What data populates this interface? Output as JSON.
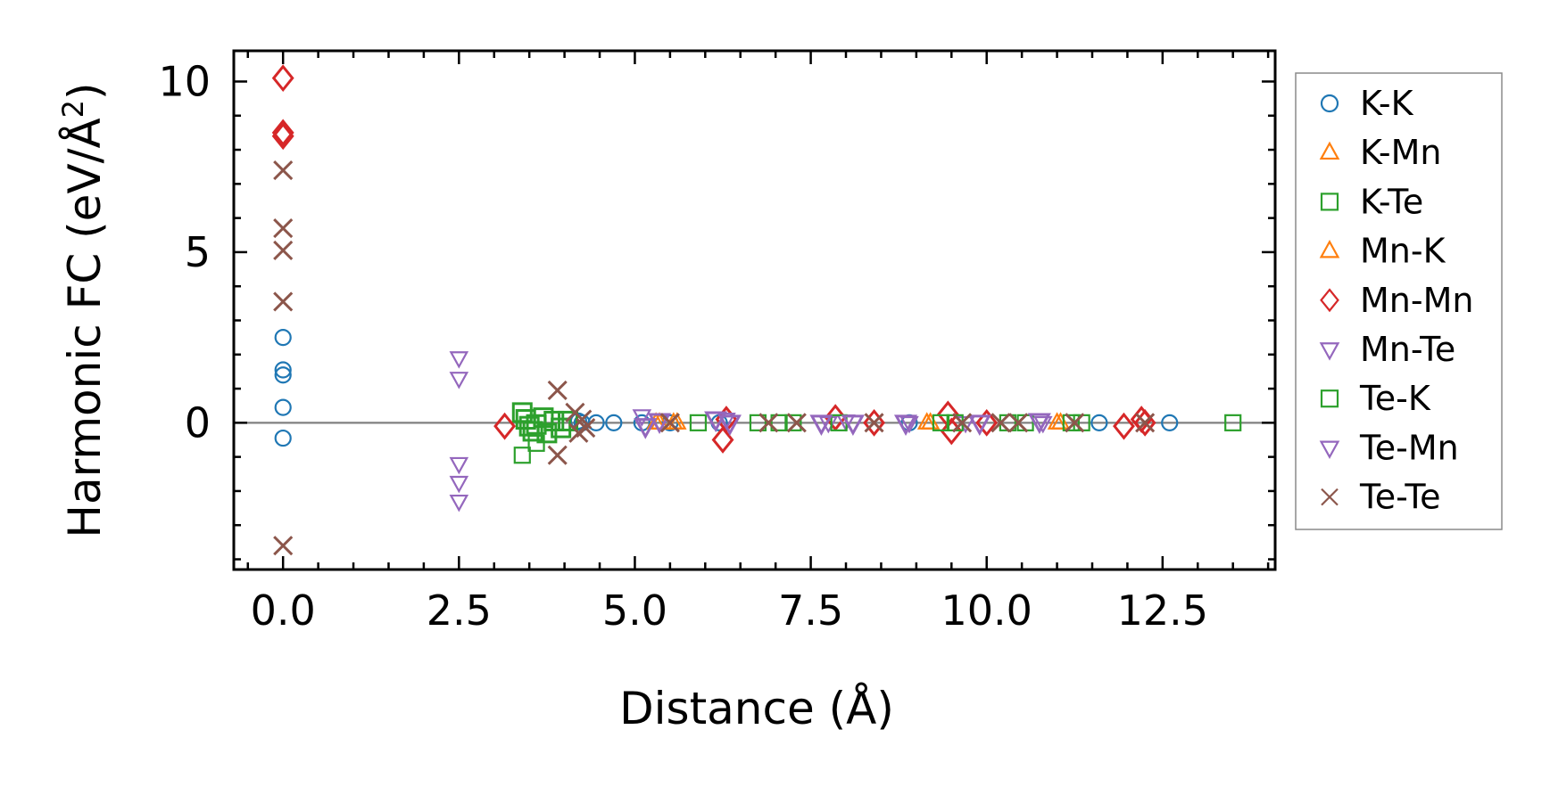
{
  "chart_data": {
    "type": "scatter",
    "xlabel": "Distance (Å)",
    "ylabel_main": "Harmonic FC (eV/Å",
    "ylabel_sup": "2",
    "ylabel_close": ")",
    "xlim": [
      -0.7,
      14.1
    ],
    "ylim": [
      -4.3,
      10.9
    ],
    "xticks": [
      0.0,
      2.5,
      5.0,
      7.5,
      10.0,
      12.5
    ],
    "xtick_labels": [
      "0.0",
      "2.5",
      "5.0",
      "7.5",
      "10.0",
      "12.5"
    ],
    "yticks": [
      0,
      5,
      10
    ],
    "ytick_labels": [
      "0",
      "5",
      "10"
    ],
    "grid": false,
    "zero_line": true,
    "legend_placement": "outside-right",
    "series": [
      {
        "name": "K-K",
        "color": "#1f77b4",
        "marker": "circle",
        "big": false,
        "points": [
          [
            0,
            2.5
          ],
          [
            0,
            1.55
          ],
          [
            0,
            1.4
          ],
          [
            0,
            0.45
          ],
          [
            0,
            -0.45
          ],
          [
            4.2,
            0.05
          ],
          [
            4.25,
            0
          ],
          [
            4.45,
            0
          ],
          [
            4.7,
            0
          ],
          [
            5.1,
            0
          ],
          [
            5.5,
            0
          ],
          [
            6.2,
            0
          ],
          [
            8.9,
            0
          ],
          [
            11.6,
            0
          ],
          [
            12.6,
            0
          ]
        ]
      },
      {
        "name": "K-Mn",
        "color": "#ff7f0e",
        "marker": "triangle-up",
        "big": false,
        "points": [
          [
            5.35,
            0
          ],
          [
            5.6,
            0
          ],
          [
            9.2,
            0
          ],
          [
            11.05,
            0
          ]
        ]
      },
      {
        "name": "K-Te",
        "color": "#2ca02c",
        "marker": "square",
        "big": true,
        "points": [
          [
            3.4,
            0.3
          ],
          [
            3.45,
            0.1
          ],
          [
            3.5,
            -0.1
          ],
          [
            3.55,
            -0.25
          ],
          [
            3.6,
            -0.05
          ],
          [
            3.7,
            0.15
          ],
          [
            3.75,
            -0.3
          ],
          [
            3.85,
            0.05
          ],
          [
            3.95,
            -0.15
          ],
          [
            4.05,
            0.05
          ]
        ]
      },
      {
        "name": "Mn-K",
        "color": "#ff7f0e",
        "marker": "triangle-up",
        "big": false,
        "points": [
          [
            5.3,
            0
          ],
          [
            5.55,
            0
          ],
          [
            9.15,
            0
          ],
          [
            11.0,
            0
          ]
        ]
      },
      {
        "name": "Mn-Mn",
        "color": "#d62728",
        "marker": "diamond",
        "big": true,
        "points": [
          [
            0,
            10.1
          ],
          [
            0,
            8.5
          ],
          [
            0,
            8.4
          ],
          [
            3.15,
            -0.1
          ],
          [
            6.25,
            -0.5
          ],
          [
            6.3,
            0.1
          ],
          [
            7.85,
            0.15
          ],
          [
            8.4,
            0
          ],
          [
            9.45,
            0.25
          ],
          [
            9.5,
            -0.25
          ],
          [
            10.0,
            0
          ],
          [
            11.95,
            -0.1
          ],
          [
            12.2,
            0.1
          ],
          [
            12.25,
            0
          ]
        ]
      },
      {
        "name": "Mn-Te",
        "color": "#9467bd",
        "marker": "triangle-down",
        "big": false,
        "points": [
          [
            2.5,
            1.9
          ],
          [
            2.5,
            1.3
          ],
          [
            2.5,
            -1.2
          ],
          [
            2.5,
            -1.75
          ],
          [
            2.5,
            -2.3
          ],
          [
            5.1,
            0.2
          ],
          [
            6.3,
            0.1
          ],
          [
            7.75,
            0
          ],
          [
            8.0,
            0.05
          ],
          [
            8.9,
            0
          ],
          [
            9.7,
            0
          ],
          [
            10.8,
            0
          ]
        ]
      },
      {
        "name": "Te-K",
        "color": "#2ca02c",
        "marker": "square",
        "big": false,
        "points": [
          [
            3.4,
            -0.95
          ],
          [
            3.6,
            -0.6
          ],
          [
            5.9,
            0
          ],
          [
            6.75,
            0
          ],
          [
            7.05,
            0
          ],
          [
            7.25,
            0
          ],
          [
            7.9,
            0
          ],
          [
            9.35,
            0
          ],
          [
            9.55,
            0
          ],
          [
            10.3,
            0
          ],
          [
            10.55,
            0
          ],
          [
            11.2,
            0
          ],
          [
            11.35,
            0
          ],
          [
            13.5,
            0
          ]
        ]
      },
      {
        "name": "Te-Mn",
        "color": "#9467bd",
        "marker": "triangle-down",
        "big": true,
        "points": [
          [
            5.15,
            -0.1
          ],
          [
            5.35,
            0.05
          ],
          [
            6.15,
            0.1
          ],
          [
            6.35,
            0
          ],
          [
            7.65,
            0
          ],
          [
            8.1,
            0
          ],
          [
            8.85,
            0
          ],
          [
            9.9,
            0
          ],
          [
            10.75,
            0.05
          ]
        ]
      },
      {
        "name": "Te-Te",
        "color": "#8c564b",
        "marker": "x",
        "big": true,
        "points": [
          [
            0,
            7.4
          ],
          [
            0,
            5.7
          ],
          [
            0,
            5.05
          ],
          [
            0,
            3.55
          ],
          [
            0,
            -3.6
          ],
          [
            3.9,
            0.95
          ],
          [
            3.9,
            -0.95
          ],
          [
            4.15,
            0.3
          ],
          [
            4.2,
            -0.3
          ],
          [
            4.25,
            0.1
          ],
          [
            4.3,
            -0.15
          ],
          [
            5.5,
            0
          ],
          [
            6.9,
            0
          ],
          [
            7.3,
            0
          ],
          [
            8.4,
            0
          ],
          [
            9.65,
            0
          ],
          [
            10.2,
            0
          ],
          [
            10.45,
            0
          ],
          [
            11.25,
            0
          ],
          [
            12.25,
            0
          ]
        ]
      }
    ]
  }
}
